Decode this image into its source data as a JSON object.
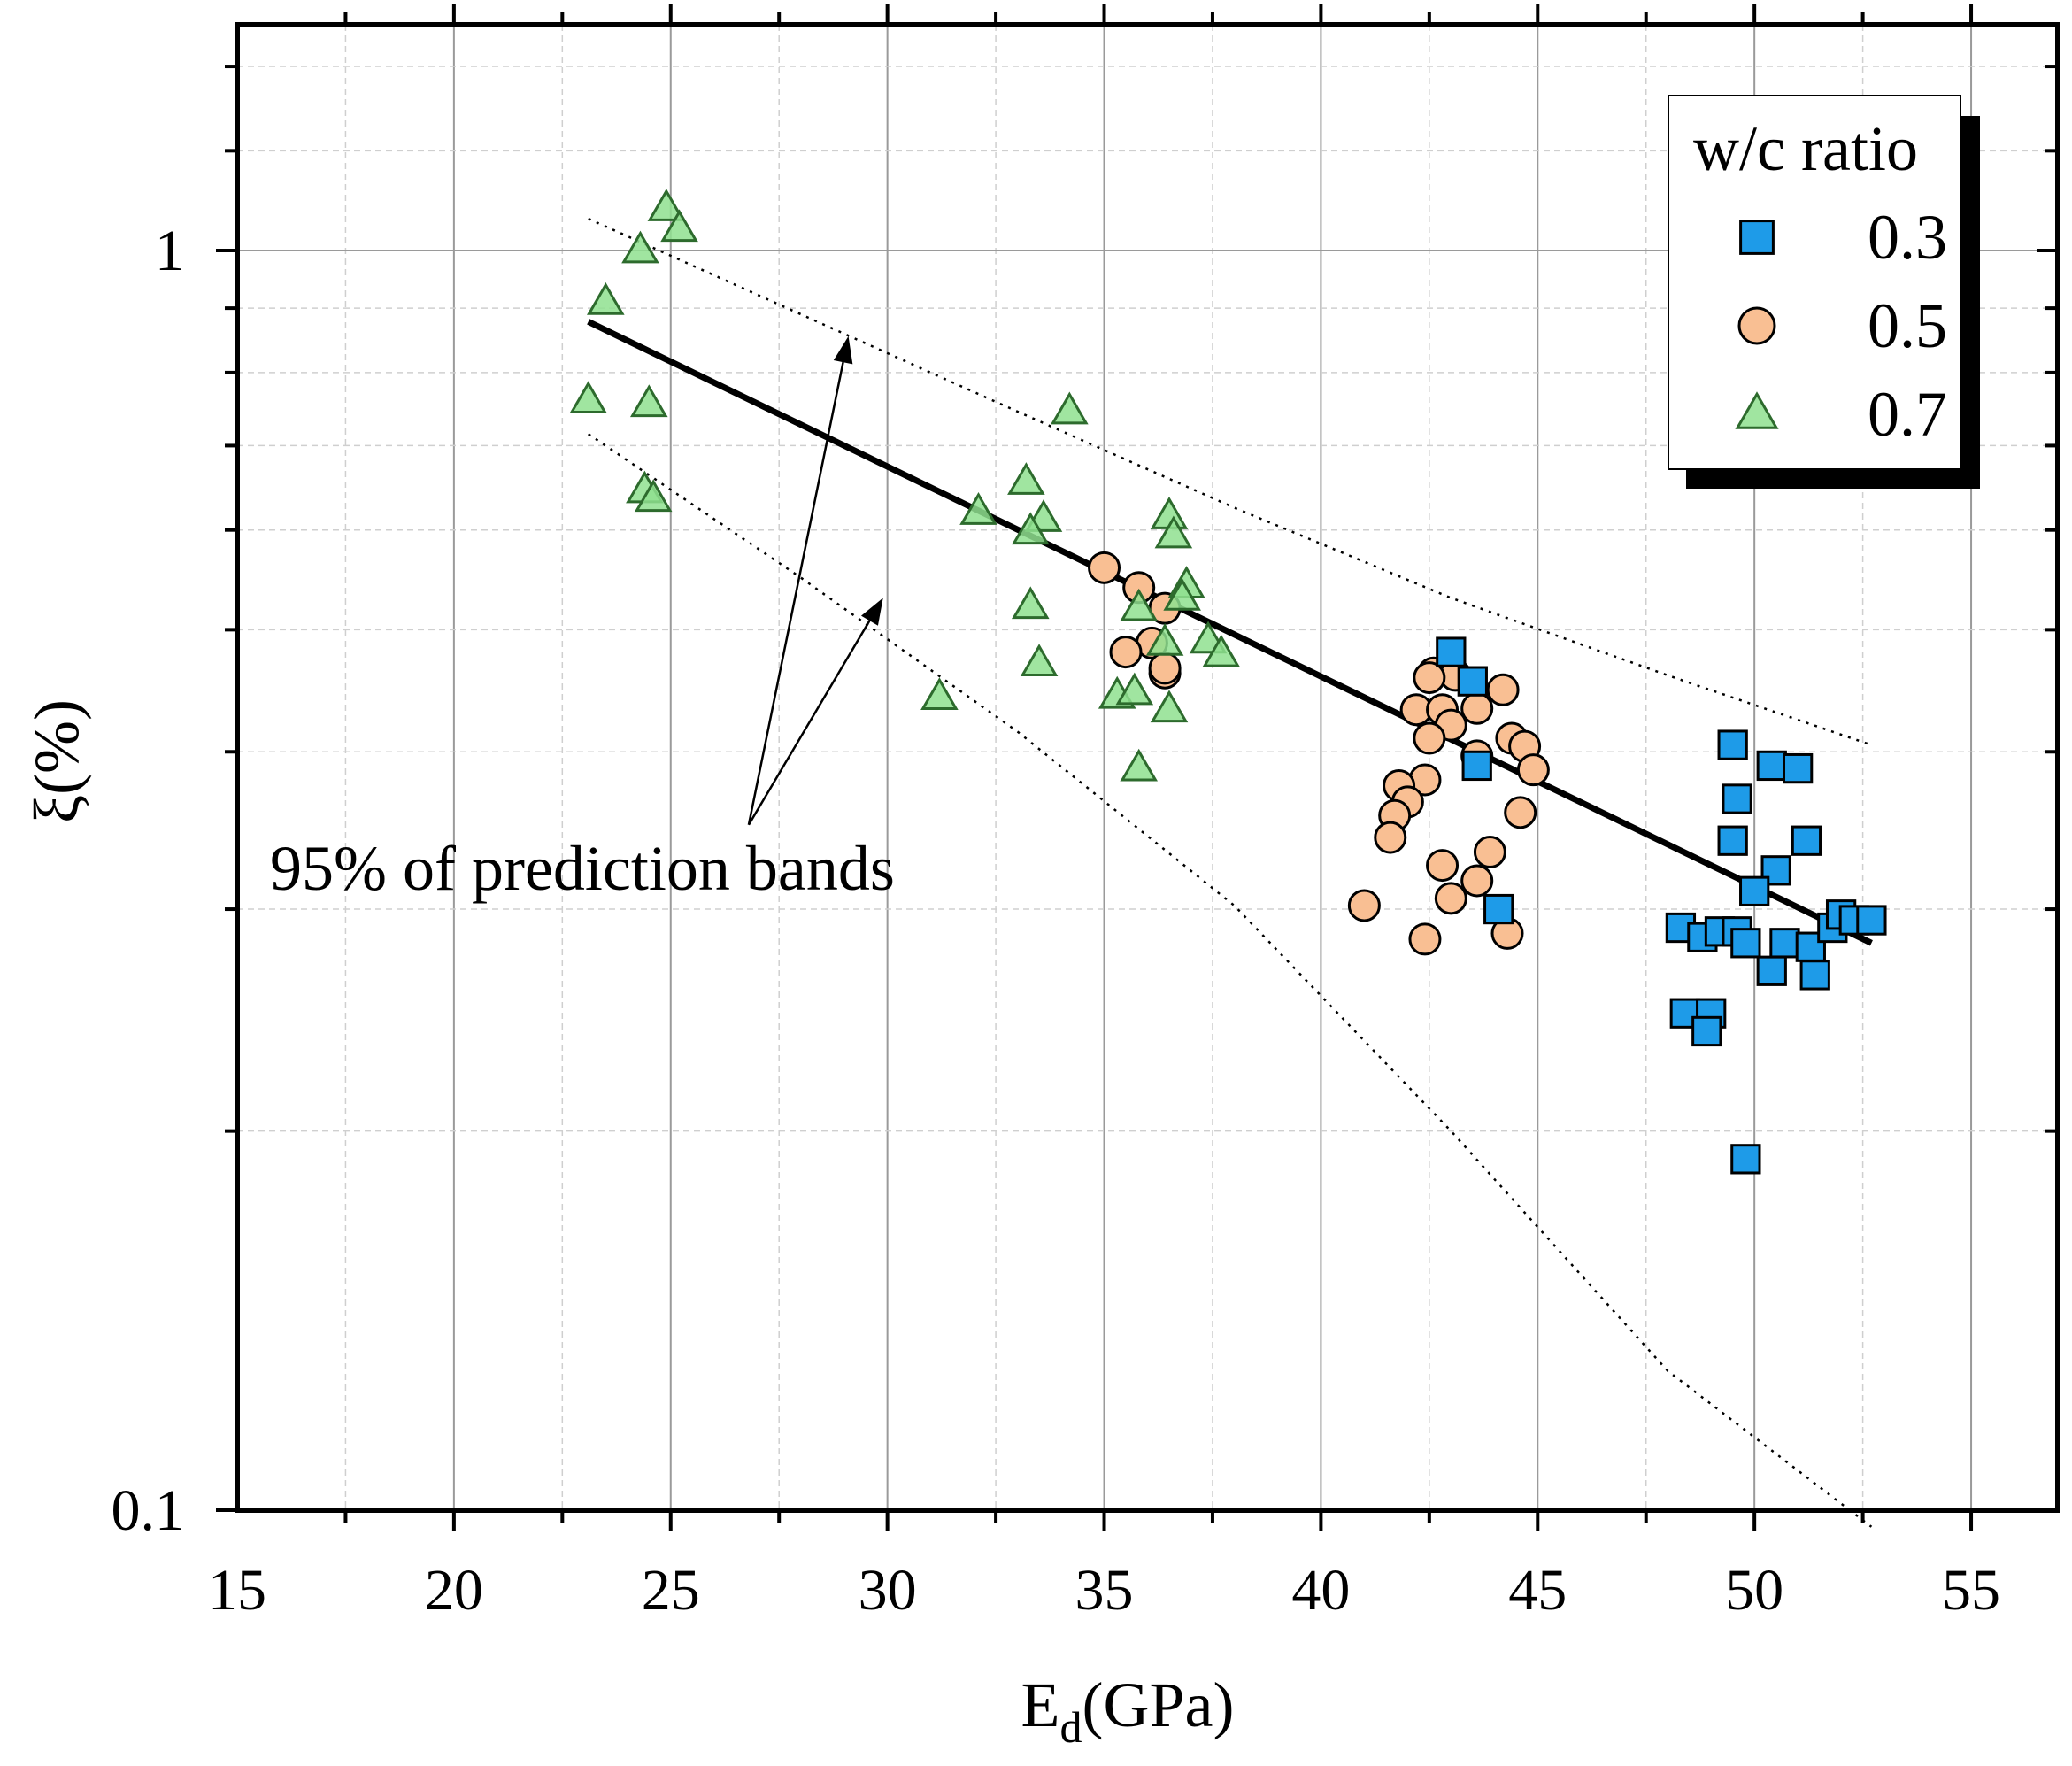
{
  "chart_data": {
    "type": "scatter",
    "title": "",
    "xlabel": "E",
    "xlabel_sub": "d",
    "xlabel_unit": "(GPa)",
    "ylabel": "ξ(%)",
    "xlim": [
      15,
      57
    ],
    "ylim": [
      0.1,
      1.5
    ],
    "yscale": "log",
    "x_ticks": [
      15,
      20,
      25,
      30,
      35,
      40,
      45,
      50,
      55
    ],
    "x_tick_labels": [
      "15",
      "20",
      "25",
      "30",
      "35",
      "40",
      "45",
      "50",
      "55"
    ],
    "y_ticks": [
      0.1,
      1
    ],
    "y_tick_labels": [
      "0.1",
      "1"
    ],
    "grid": true,
    "legend": {
      "title": "w/c ratio",
      "position": "top-right",
      "entries": [
        "0.3",
        "0.5",
        "0.7"
      ]
    },
    "annotation": "95% of prediction bands",
    "series": [
      {
        "name": "0.3",
        "marker": "square",
        "color": "#1e9be8",
        "points": [
          [
            43.0,
            0.48
          ],
          [
            43.5,
            0.455
          ],
          [
            43.6,
            0.39
          ],
          [
            44.1,
            0.3
          ],
          [
            49.5,
            0.405
          ],
          [
            50.4,
            0.39
          ],
          [
            51.0,
            0.388
          ],
          [
            49.6,
            0.367
          ],
          [
            49.5,
            0.34
          ],
          [
            51.2,
            0.34
          ],
          [
            50.5,
            0.322
          ],
          [
            50.0,
            0.31
          ],
          [
            48.3,
            0.29
          ],
          [
            48.8,
            0.285
          ],
          [
            49.2,
            0.288
          ],
          [
            49.6,
            0.288
          ],
          [
            49.8,
            0.282
          ],
          [
            50.7,
            0.282
          ],
          [
            51.3,
            0.28
          ],
          [
            51.8,
            0.29
          ],
          [
            52.0,
            0.297
          ],
          [
            52.3,
            0.294
          ],
          [
            52.7,
            0.294
          ],
          [
            50.4,
            0.268
          ],
          [
            51.4,
            0.266
          ],
          [
            48.4,
            0.248
          ],
          [
            49.0,
            0.248
          ],
          [
            48.9,
            0.24
          ],
          [
            49.8,
            0.19
          ]
        ]
      },
      {
        "name": "0.5",
        "marker": "circle",
        "color": "#f9bf93",
        "points": [
          [
            35.0,
            0.56
          ],
          [
            35.8,
            0.54
          ],
          [
            36.4,
            0.52
          ],
          [
            36.4,
            0.462
          ],
          [
            36.1,
            0.488
          ],
          [
            35.5,
            0.48
          ],
          [
            36.4,
            0.466
          ],
          [
            42.6,
            0.462
          ],
          [
            43.1,
            0.46
          ],
          [
            42.5,
            0.458
          ],
          [
            44.2,
            0.448
          ],
          [
            42.2,
            0.432
          ],
          [
            42.8,
            0.432
          ],
          [
            43.6,
            0.433
          ],
          [
            43.0,
            0.42
          ],
          [
            42.5,
            0.41
          ],
          [
            44.4,
            0.41
          ],
          [
            44.7,
            0.404
          ],
          [
            43.6,
            0.397
          ],
          [
            44.9,
            0.387
          ],
          [
            42.4,
            0.38
          ],
          [
            41.8,
            0.376
          ],
          [
            42.0,
            0.365
          ],
          [
            41.7,
            0.356
          ],
          [
            44.6,
            0.358
          ],
          [
            41.6,
            0.342
          ],
          [
            43.9,
            0.333
          ],
          [
            42.8,
            0.325
          ],
          [
            43.6,
            0.316
          ],
          [
            43.0,
            0.306
          ],
          [
            41.0,
            0.302
          ],
          [
            44.3,
            0.287
          ],
          [
            42.4,
            0.284
          ]
        ]
      },
      {
        "name": "0.7",
        "marker": "triangle",
        "color": "#8fe08f",
        "points": [
          [
            24.9,
            1.08
          ],
          [
            25.2,
            1.04
          ],
          [
            24.3,
            1.0
          ],
          [
            23.5,
            0.91
          ],
          [
            23.1,
            0.76
          ],
          [
            24.5,
            0.755
          ],
          [
            24.4,
            0.645
          ],
          [
            24.6,
            0.635
          ],
          [
            34.2,
            0.745
          ],
          [
            33.2,
            0.655
          ],
          [
            32.1,
            0.62
          ],
          [
            33.6,
            0.612
          ],
          [
            33.3,
            0.598
          ],
          [
            36.5,
            0.615
          ],
          [
            36.6,
            0.594
          ],
          [
            36.9,
            0.542
          ],
          [
            36.8,
            0.53
          ],
          [
            33.3,
            0.522
          ],
          [
            35.8,
            0.52
          ],
          [
            36.4,
            0.488
          ],
          [
            37.4,
            0.49
          ],
          [
            37.7,
            0.478
          ],
          [
            33.5,
            0.47
          ],
          [
            31.2,
            0.442
          ],
          [
            35.3,
            0.443
          ],
          [
            35.7,
            0.446
          ],
          [
            36.5,
            0.432
          ],
          [
            35.8,
            0.388
          ]
        ]
      }
    ],
    "fit_line": {
      "name": "fit",
      "x": [
        23.1,
        52.7
      ],
      "y": [
        0.878,
        0.282
      ]
    },
    "prediction_bands": {
      "upper": {
        "x": [
          23.1,
          28,
          33,
          38,
          43,
          48,
          52.7
        ],
        "y": [
          1.06,
          0.89,
          0.745,
          0.625,
          0.53,
          0.46,
          0.405
        ]
      },
      "lower": {
        "x": [
          23.1,
          28,
          33,
          38,
          43,
          48,
          52.7
        ],
        "y": [
          0.715,
          0.55,
          0.415,
          0.302,
          0.2,
          0.129,
          0.097
        ]
      }
    },
    "arrows": [
      {
        "from": [
          26.8,
          0.35
        ],
        "to": [
          29.1,
          0.855
        ]
      },
      {
        "from": [
          26.8,
          0.35
        ],
        "to": [
          29.9,
          0.53
        ]
      }
    ]
  }
}
